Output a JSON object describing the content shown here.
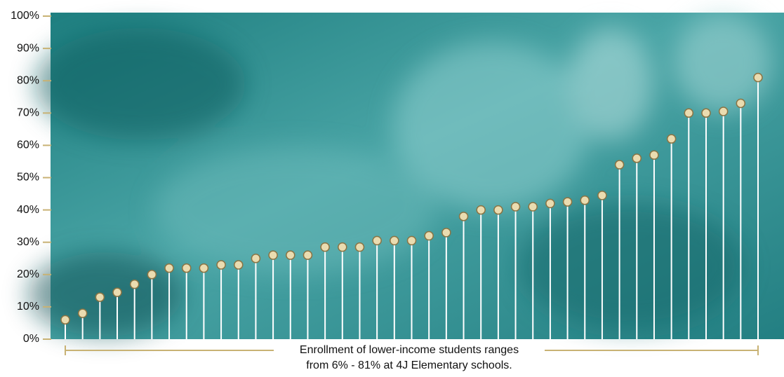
{
  "chart_data": {
    "type": "lollipop",
    "values": [
      6,
      8,
      13,
      14.5,
      17,
      20,
      22,
      22,
      22,
      23,
      23,
      25,
      26,
      26,
      26,
      28.5,
      28.5,
      28.5,
      30.5,
      30.5,
      30.5,
      32,
      33,
      38,
      40,
      40,
      41,
      41,
      42,
      42.5,
      43,
      44.5,
      54,
      56,
      57,
      62,
      70,
      70,
      70.5,
      73,
      81
    ],
    "ylim": [
      0,
      100
    ],
    "yticks": [
      {
        "value": 0,
        "label": "0%"
      },
      {
        "value": 10,
        "label": "10%"
      },
      {
        "value": 20,
        "label": "20%"
      },
      {
        "value": 30,
        "label": "30%"
      },
      {
        "value": 40,
        "label": "40%"
      },
      {
        "value": 50,
        "label": "50%"
      },
      {
        "value": 60,
        "label": "60%"
      },
      {
        "value": 70,
        "label": "70%"
      },
      {
        "value": 80,
        "label": "80%"
      },
      {
        "value": 90,
        "label": "90%"
      },
      {
        "value": 100,
        "label": "100%"
      }
    ],
    "color": "#ffffff",
    "marker_color": "#eadcb0",
    "annotation": [
      "Enrollment of lower-income students ranges",
      "from 6% - 81% at 4J Elementary schools."
    ]
  }
}
